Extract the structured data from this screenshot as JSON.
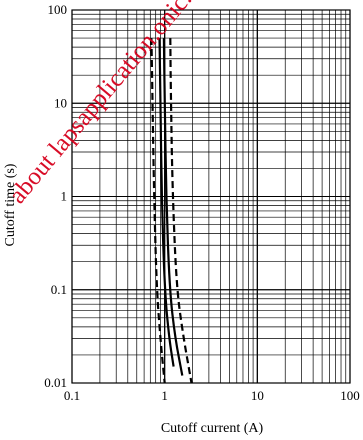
{
  "chart_data": {
    "type": "line",
    "xlabel": "Cutoff current  (A)",
    "ylabel": "Cutoff time  (s)",
    "x_scale": "log",
    "y_scale": "log",
    "xlim": [
      0.1,
      100
    ],
    "ylim": [
      0.01,
      100
    ],
    "x_ticks": [
      "0.1",
      "1",
      "10",
      "100"
    ],
    "y_ticks": [
      "0.01",
      "0.1",
      "1",
      "10",
      "100"
    ],
    "grid": true,
    "series": [
      {
        "style": "dashed",
        "points": [
          [
            0.72,
            50
          ],
          [
            0.74,
            10
          ],
          [
            0.77,
            1
          ],
          [
            0.82,
            0.1
          ],
          [
            0.9,
            0.03
          ],
          [
            1.0,
            0.01
          ]
        ]
      },
      {
        "style": "solid",
        "points": [
          [
            0.88,
            50
          ],
          [
            0.9,
            10
          ],
          [
            0.93,
            1
          ],
          [
            1.0,
            0.1
          ],
          [
            1.12,
            0.03
          ],
          [
            1.25,
            0.015
          ]
        ]
      },
      {
        "style": "solid",
        "points": [
          [
            0.98,
            50
          ],
          [
            1.0,
            10
          ],
          [
            1.04,
            1
          ],
          [
            1.13,
            0.1
          ],
          [
            1.3,
            0.03
          ],
          [
            1.55,
            0.012
          ]
        ]
      },
      {
        "style": "dashed",
        "points": [
          [
            1.15,
            50
          ],
          [
            1.17,
            10
          ],
          [
            1.22,
            1
          ],
          [
            1.35,
            0.1
          ],
          [
            1.6,
            0.03
          ],
          [
            1.95,
            0.01
          ]
        ]
      }
    ]
  },
  "watermark": "about lapsapplication.onic.net/sci/c"
}
